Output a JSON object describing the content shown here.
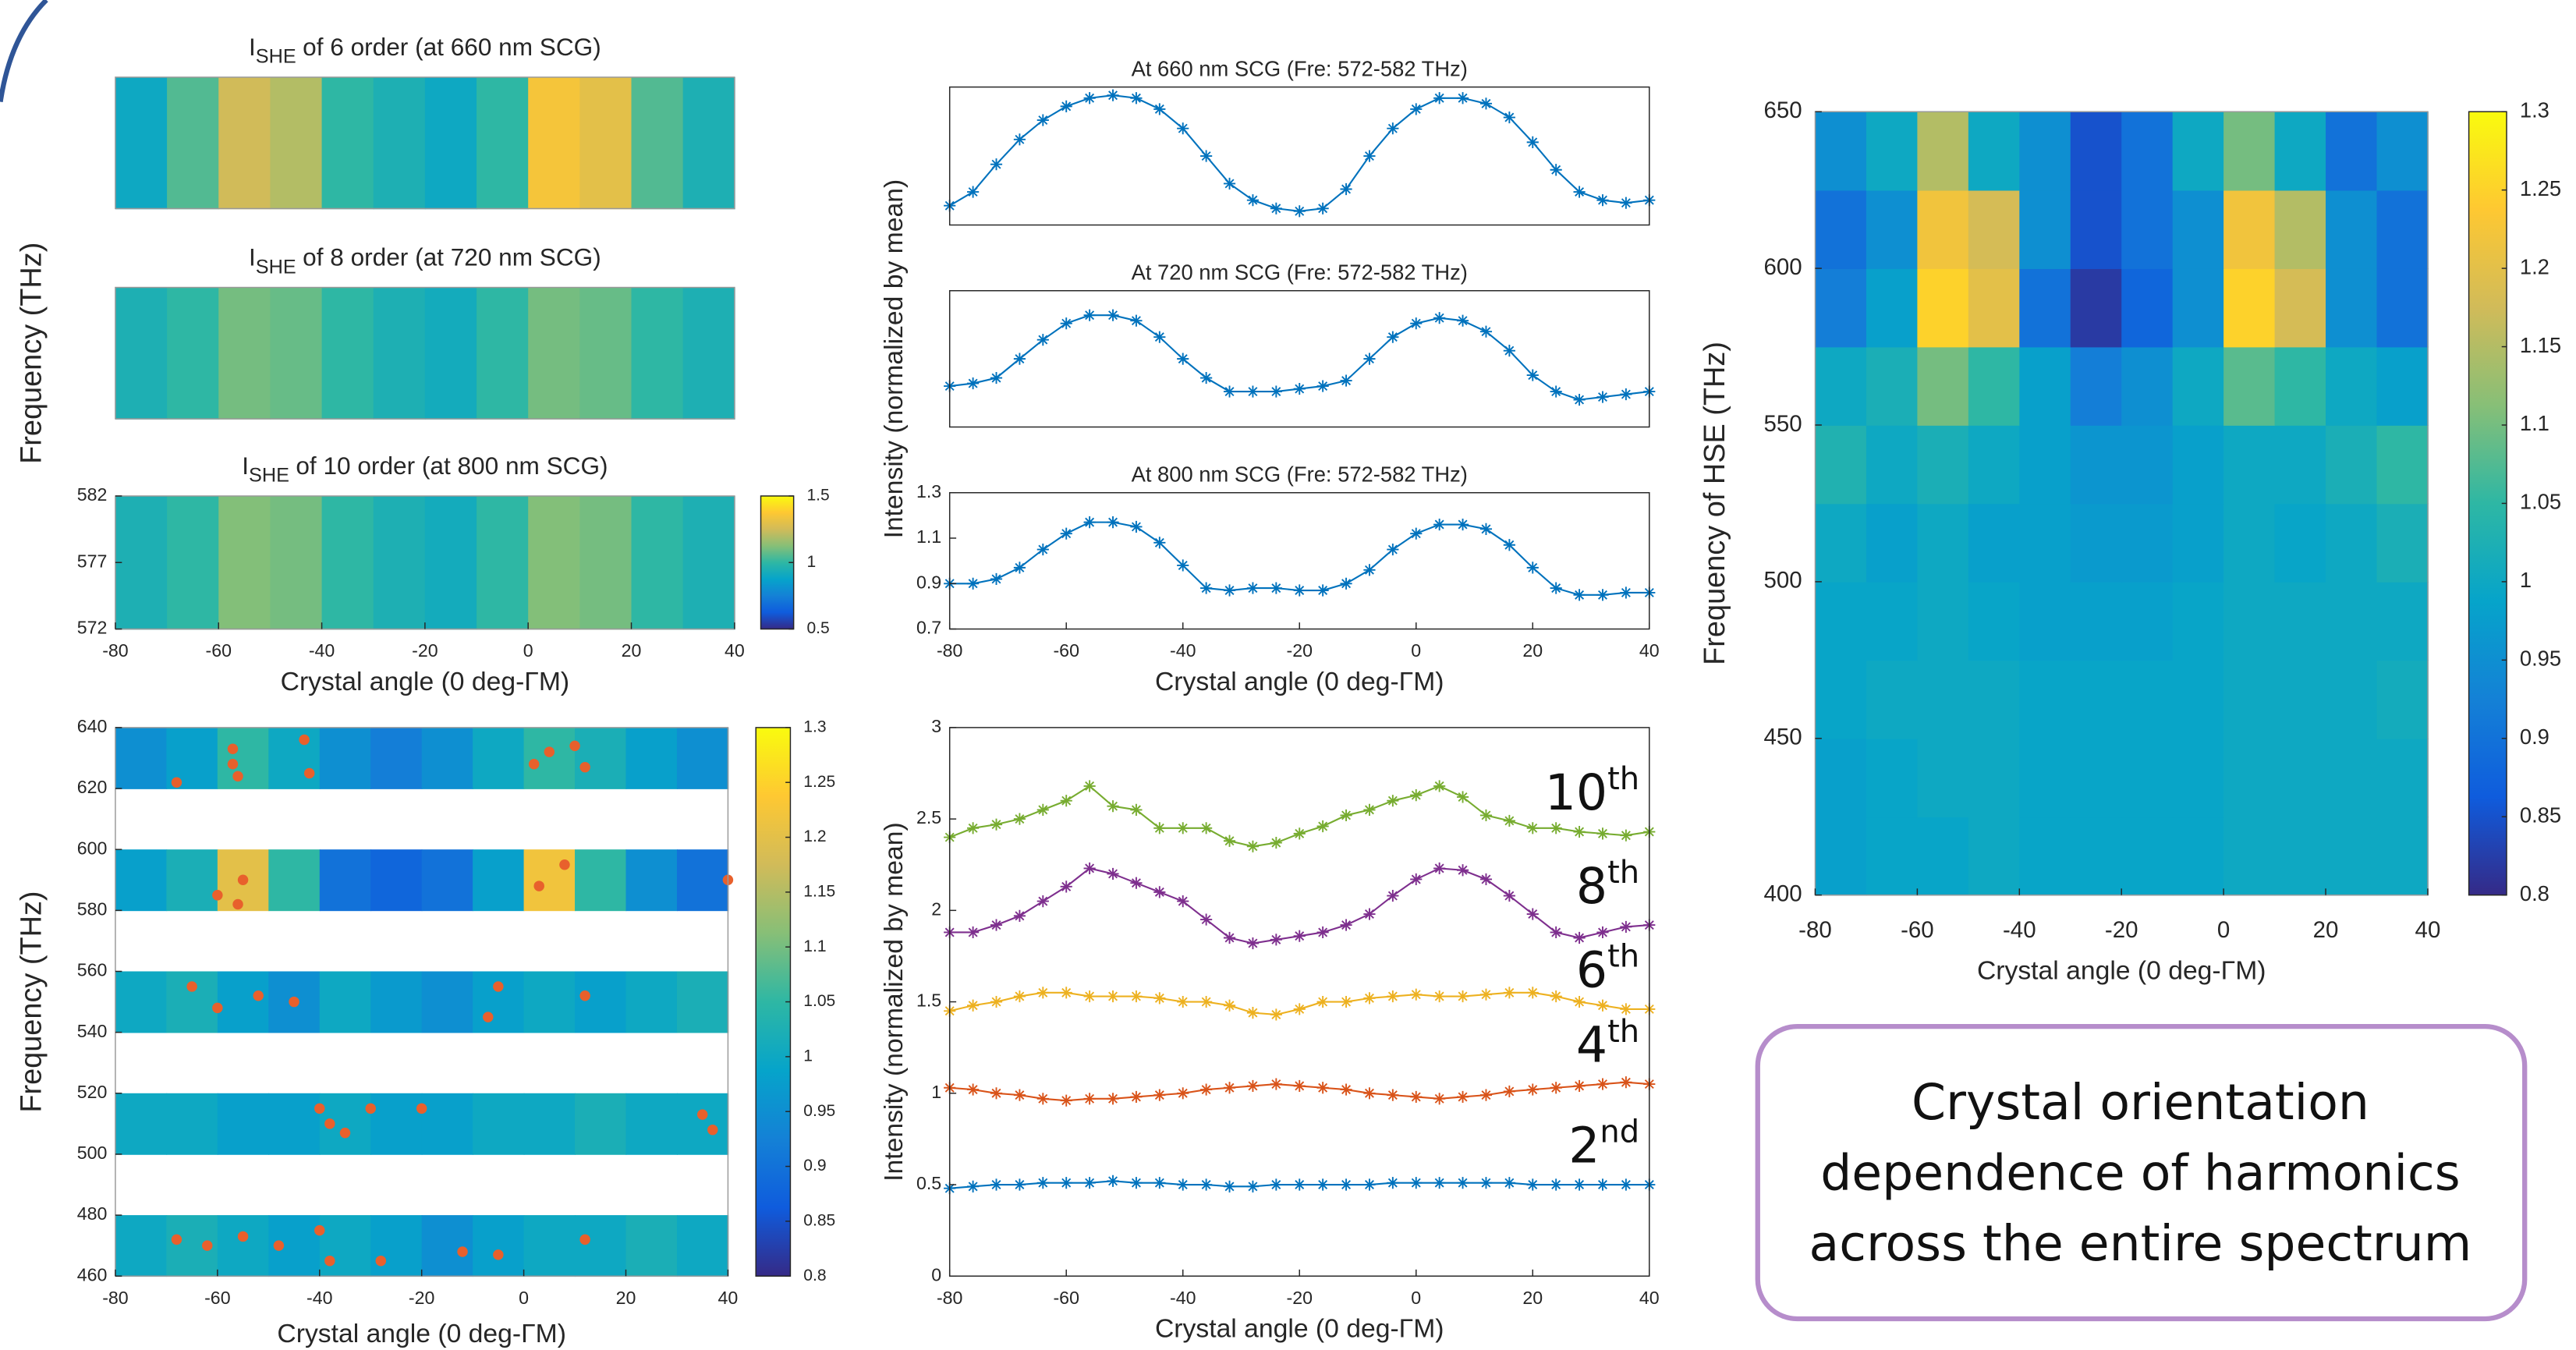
{
  "colormap": [
    "#352a87",
    "#0f5cdd",
    "#1481d6",
    "#06a4ca",
    "#2eb7a4",
    "#87bf77",
    "#d1bb59",
    "#fec832",
    "#f9fb0e"
  ],
  "chart_data": [
    {
      "type": "heatmap",
      "title": "I",
      "title_sub": "SHE",
      "title_rest": "of 6 order (at 660 nm SCG)",
      "xlim": [
        -80,
        40
      ],
      "ylim": [
        572,
        582
      ],
      "xbins": [
        -80,
        -70,
        -60,
        -50,
        -40,
        -30,
        -20,
        -10,
        0,
        10,
        20,
        30,
        40
      ],
      "ybins": [
        572,
        582
      ],
      "z": [
        [
          0.9,
          1.05,
          1.25,
          1.2,
          1.0,
          0.95,
          0.9,
          1.0,
          1.35,
          1.3,
          1.05,
          0.95
        ]
      ],
      "clim": [
        0.5,
        1.5
      ]
    },
    {
      "type": "heatmap",
      "title": "I",
      "title_sub": "SHE",
      "title_rest": "of 8 order (at 720 nm SCG)",
      "ylabel": "Frequency (THz)",
      "xlim": [
        -80,
        40
      ],
      "ylim": [
        572,
        582
      ],
      "xbins": [
        -80,
        -70,
        -60,
        -50,
        -40,
        -30,
        -20,
        -10,
        0,
        10,
        20,
        30,
        40
      ],
      "ybins": [
        572,
        582
      ],
      "z": [
        [
          0.95,
          1.0,
          1.1,
          1.08,
          1.0,
          0.95,
          0.92,
          1.0,
          1.1,
          1.08,
          1.0,
          0.95
        ]
      ],
      "clim": [
        0.5,
        1.5
      ]
    },
    {
      "type": "heatmap",
      "title": "I",
      "title_sub": "SHE",
      "title_rest": "of 10 order (at 800 nm SCG)",
      "xlabel": "Crystal angle (0 deg-ΓM)",
      "xlim": [
        -80,
        40
      ],
      "ylim": [
        572,
        582
      ],
      "xticks": [
        -80,
        -60,
        -40,
        -20,
        0,
        20,
        40
      ],
      "yticks": [
        572,
        577,
        582
      ],
      "xbins": [
        -80,
        -70,
        -60,
        -50,
        -40,
        -30,
        -20,
        -10,
        0,
        10,
        20,
        30,
        40
      ],
      "ybins": [
        572,
        582
      ],
      "z": [
        [
          0.95,
          1.0,
          1.12,
          1.1,
          1.0,
          0.95,
          0.92,
          1.0,
          1.12,
          1.1,
          1.0,
          0.95
        ]
      ],
      "clim": [
        0.5,
        1.5
      ],
      "cticks": [
        0.5,
        1,
        1.5
      ]
    },
    {
      "type": "line",
      "title": "At 660 nm SCG (Fre: 572-582 THz)",
      "xlim": [
        -80,
        40
      ],
      "ylim": [
        0.75,
        1.25
      ],
      "color": "#0072bd",
      "x": [
        -80,
        -76,
        -72,
        -68,
        -64,
        -60,
        -56,
        -52,
        -48,
        -44,
        -40,
        -36,
        -32,
        -28,
        -24,
        -20,
        -16,
        -12,
        -8,
        -4,
        0,
        4,
        8,
        12,
        16,
        20,
        24,
        28,
        32,
        36,
        40
      ],
      "values": [
        0.82,
        0.87,
        0.97,
        1.06,
        1.13,
        1.18,
        1.21,
        1.22,
        1.21,
        1.17,
        1.1,
        1.0,
        0.9,
        0.84,
        0.81,
        0.8,
        0.81,
        0.88,
        1.0,
        1.1,
        1.17,
        1.21,
        1.21,
        1.19,
        1.14,
        1.05,
        0.95,
        0.87,
        0.84,
        0.83,
        0.84
      ]
    },
    {
      "type": "line",
      "title": "At 720 nm SCG (Fre: 572-582 THz)",
      "ylabel": "Intensity (normalized by mean)",
      "xlim": [
        -80,
        40
      ],
      "ylim": [
        0.75,
        1.25
      ],
      "color": "#0072bd",
      "x": [
        -80,
        -76,
        -72,
        -68,
        -64,
        -60,
        -56,
        -52,
        -48,
        -44,
        -40,
        -36,
        -32,
        -28,
        -24,
        -20,
        -16,
        -12,
        -8,
        -4,
        0,
        4,
        8,
        12,
        16,
        20,
        24,
        28,
        32,
        36,
        40
      ],
      "values": [
        0.9,
        0.91,
        0.93,
        1.0,
        1.07,
        1.13,
        1.16,
        1.16,
        1.14,
        1.08,
        1.0,
        0.93,
        0.88,
        0.88,
        0.88,
        0.89,
        0.9,
        0.92,
        1.0,
        1.08,
        1.13,
        1.15,
        1.14,
        1.1,
        1.03,
        0.94,
        0.88,
        0.85,
        0.86,
        0.87,
        0.88
      ]
    },
    {
      "type": "line",
      "title": "At 800 nm SCG (Fre: 572-582 THz)",
      "xlabel": "Crystal angle (0 deg-ΓM)",
      "xlim": [
        -80,
        40
      ],
      "ylim": [
        0.7,
        1.3
      ],
      "xticks": [
        -80,
        -60,
        -40,
        -20,
        0,
        20,
        40
      ],
      "yticks": [
        0.7,
        0.9,
        1.1,
        1.3
      ],
      "color": "#0072bd",
      "x": [
        -80,
        -76,
        -72,
        -68,
        -64,
        -60,
        -56,
        -52,
        -48,
        -44,
        -40,
        -36,
        -32,
        -28,
        -24,
        -20,
        -16,
        -12,
        -8,
        -4,
        0,
        4,
        8,
        12,
        16,
        20,
        24,
        28,
        32,
        36,
        40
      ],
      "values": [
        0.9,
        0.9,
        0.92,
        0.97,
        1.05,
        1.12,
        1.17,
        1.17,
        1.15,
        1.08,
        0.98,
        0.88,
        0.87,
        0.88,
        0.88,
        0.87,
        0.87,
        0.9,
        0.96,
        1.05,
        1.12,
        1.16,
        1.16,
        1.14,
        1.07,
        0.97,
        0.88,
        0.85,
        0.85,
        0.86,
        0.86
      ]
    },
    {
      "type": "heatmap",
      "xlabel": "Crystal angle (0 deg-ΓM)",
      "ylabel": "Frequency (THz)",
      "xlim": [
        -80,
        40
      ],
      "ylim": [
        460,
        640
      ],
      "xticks": [
        -80,
        -60,
        -40,
        -20,
        0,
        20,
        40
      ],
      "yticks": [
        460,
        480,
        500,
        520,
        540,
        560,
        580,
        600,
        620,
        640
      ],
      "xbins": [
        -80,
        -70,
        -60,
        -50,
        -40,
        -30,
        -20,
        -10,
        0,
        10,
        20,
        30,
        40
      ],
      "ybins": [
        460,
        480,
        500,
        520,
        540,
        560,
        580,
        600,
        620,
        640
      ],
      "z": [
        [
          1.0,
          1.02,
          1.0,
          0.98,
          1.0,
          0.98,
          0.95,
          0.98,
          1.0,
          1.0,
          1.02,
          1.0
        ],
        [
          null,
          null,
          null,
          null,
          null,
          null,
          null,
          null,
          null,
          null,
          null,
          null
        ],
        [
          1.0,
          1.0,
          0.98,
          0.98,
          1.0,
          0.98,
          0.98,
          1.0,
          1.0,
          1.02,
          1.0,
          1.0
        ],
        [
          null,
          null,
          null,
          null,
          null,
          null,
          null,
          null,
          null,
          null,
          null,
          null
        ],
        [
          1.0,
          1.02,
          0.98,
          0.95,
          1.0,
          0.97,
          0.95,
          0.98,
          1.0,
          0.98,
          1.0,
          1.02
        ],
        [
          null,
          null,
          null,
          null,
          null,
          null,
          null,
          null,
          null,
          null,
          null,
          null
        ],
        [
          0.98,
          1.02,
          1.2,
          1.05,
          0.9,
          0.88,
          0.9,
          0.98,
          1.22,
          1.05,
          0.95,
          0.9
        ],
        [
          null,
          null,
          null,
          null,
          null,
          null,
          null,
          null,
          null,
          null,
          null,
          null
        ],
        [
          0.95,
          0.98,
          1.05,
          1.0,
          0.95,
          0.92,
          0.95,
          1.0,
          1.05,
          1.02,
          0.98,
          0.95
        ]
      ],
      "clim": [
        0.8,
        1.3
      ],
      "cticks": [
        0.8,
        0.85,
        0.9,
        0.95,
        1,
        1.05,
        1.1,
        1.15,
        1.2,
        1.25,
        1.3
      ],
      "points": {
        "color": "#e8602c",
        "x": [
          -57,
          -57,
          -56,
          -43,
          -42,
          -68,
          -60,
          -55,
          2,
          5,
          10,
          12,
          -56,
          3,
          8,
          40,
          -65,
          -60,
          -52,
          -45,
          -5,
          -7,
          12,
          -40,
          -35,
          -30,
          -38,
          -20,
          35,
          37,
          -68,
          -62,
          -55,
          -48,
          -40,
          -38,
          -28,
          -12,
          12,
          -5
        ],
        "y": [
          633,
          628,
          624,
          636,
          625,
          622,
          585,
          590,
          628,
          632,
          634,
          627,
          582,
          588,
          595,
          590,
          555,
          548,
          552,
          550,
          555,
          545,
          552,
          515,
          507,
          515,
          510,
          515,
          513,
          508,
          472,
          470,
          473,
          470,
          475,
          465,
          465,
          468,
          472,
          467
        ]
      }
    },
    {
      "type": "line",
      "xlabel": "Crystal angle (0 deg-ΓM)",
      "ylabel": "Intensity (normalized by mean)",
      "xlim": [
        -80,
        40
      ],
      "ylim": [
        0,
        3
      ],
      "xticks": [
        -80,
        -60,
        -40,
        -20,
        0,
        20,
        40
      ],
      "yticks": [
        0,
        0.5,
        1,
        1.5,
        2,
        2.5,
        3
      ],
      "x": [
        -80,
        -76,
        -72,
        -68,
        -64,
        -60,
        -56,
        -52,
        -48,
        -44,
        -40,
        -36,
        -32,
        -28,
        -24,
        -20,
        -16,
        -12,
        -8,
        -4,
        0,
        4,
        8,
        12,
        16,
        20,
        24,
        28,
        32,
        36,
        40
      ],
      "series": [
        {
          "label": "10",
          "label_sup": "th",
          "color": "#77ac30",
          "values": [
            2.4,
            2.45,
            2.47,
            2.5,
            2.55,
            2.6,
            2.68,
            2.57,
            2.55,
            2.45,
            2.45,
            2.45,
            2.38,
            2.35,
            2.37,
            2.42,
            2.46,
            2.52,
            2.55,
            2.6,
            2.63,
            2.68,
            2.62,
            2.52,
            2.49,
            2.45,
            2.45,
            2.43,
            2.42,
            2.41,
            2.43
          ]
        },
        {
          "label": "8",
          "label_sup": "th",
          "color": "#7e2f8e",
          "values": [
            1.88,
            1.88,
            1.92,
            1.97,
            2.05,
            2.13,
            2.23,
            2.2,
            2.15,
            2.1,
            2.05,
            1.95,
            1.85,
            1.82,
            1.84,
            1.86,
            1.88,
            1.92,
            1.98,
            2.08,
            2.17,
            2.23,
            2.22,
            2.17,
            2.08,
            1.98,
            1.88,
            1.85,
            1.88,
            1.91,
            1.92
          ]
        },
        {
          "label": "6",
          "label_sup": "th",
          "color": "#edb120",
          "values": [
            1.45,
            1.48,
            1.5,
            1.53,
            1.55,
            1.55,
            1.53,
            1.53,
            1.53,
            1.52,
            1.5,
            1.5,
            1.48,
            1.44,
            1.43,
            1.46,
            1.5,
            1.5,
            1.52,
            1.53,
            1.54,
            1.53,
            1.53,
            1.54,
            1.55,
            1.55,
            1.53,
            1.5,
            1.48,
            1.46,
            1.46
          ]
        },
        {
          "label": "4",
          "label_sup": "th",
          "color": "#d95319",
          "values": [
            1.03,
            1.02,
            1.0,
            0.99,
            0.97,
            0.96,
            0.97,
            0.97,
            0.98,
            0.99,
            1.0,
            1.02,
            1.03,
            1.04,
            1.05,
            1.04,
            1.03,
            1.02,
            1.0,
            0.99,
            0.98,
            0.97,
            0.98,
            0.99,
            1.01,
            1.02,
            1.03,
            1.04,
            1.05,
            1.06,
            1.05
          ]
        },
        {
          "label": "2",
          "label_sup": "nd",
          "color": "#0072bd",
          "values": [
            0.48,
            0.49,
            0.5,
            0.5,
            0.51,
            0.51,
            0.51,
            0.52,
            0.51,
            0.51,
            0.5,
            0.5,
            0.49,
            0.49,
            0.5,
            0.5,
            0.5,
            0.5,
            0.5,
            0.51,
            0.51,
            0.51,
            0.51,
            0.51,
            0.51,
            0.5,
            0.5,
            0.5,
            0.5,
            0.5,
            0.5
          ]
        }
      ]
    },
    {
      "type": "heatmap",
      "xlabel": "Crystal angle (0 deg-ΓM)",
      "ylabel": "Frequency of HSE (THz)",
      "xlim": [
        -80,
        40
      ],
      "ylim": [
        400,
        650
      ],
      "xticks": [
        -80,
        -60,
        -40,
        -20,
        0,
        20,
        40
      ],
      "yticks": [
        400,
        450,
        500,
        550,
        600,
        650
      ],
      "xbins": [
        -80,
        -70,
        -60,
        -50,
        -40,
        -30,
        -20,
        -10,
        0,
        10,
        20,
        30,
        40
      ],
      "ybins": [
        400,
        425,
        450,
        475,
        500,
        525,
        550,
        575,
        600,
        625,
        650
      ],
      "z": [
        [
          0.98,
          0.99,
          0.99,
          1.0,
          0.99,
          0.99,
          0.99,
          0.99,
          1.0,
          1.0,
          1.0,
          1.0
        ],
        [
          0.98,
          0.99,
          1.0,
          1.0,
          0.99,
          0.99,
          0.99,
          0.99,
          1.0,
          1.0,
          1.0,
          1.0
        ],
        [
          0.99,
          1.0,
          1.0,
          1.0,
          0.99,
          0.99,
          0.99,
          0.99,
          1.0,
          1.0,
          1.0,
          1.01
        ],
        [
          0.99,
          0.99,
          1.0,
          0.99,
          0.98,
          0.98,
          0.98,
          0.99,
          1.0,
          1.0,
          1.0,
          1.0
        ],
        [
          1.0,
          0.98,
          1.0,
          0.98,
          0.98,
          0.97,
          0.97,
          0.98,
          1.0,
          0.99,
          1.0,
          1.02
        ],
        [
          1.03,
          1.0,
          1.02,
          1.0,
          0.98,
          0.96,
          0.96,
          0.98,
          1.0,
          1.0,
          1.02,
          1.05
        ],
        [
          1.0,
          1.02,
          1.1,
          1.05,
          0.98,
          0.92,
          0.95,
          1.0,
          1.08,
          1.05,
          1.0,
          0.98
        ],
        [
          0.92,
          0.98,
          1.25,
          1.2,
          0.9,
          0.82,
          0.88,
          0.95,
          1.25,
          1.18,
          0.95,
          0.9
        ],
        [
          0.9,
          0.95,
          1.22,
          1.18,
          0.95,
          0.85,
          0.9,
          0.95,
          1.22,
          1.15,
          0.95,
          0.9
        ],
        [
          0.95,
          1.0,
          1.15,
          1.0,
          0.95,
          0.85,
          0.9,
          1.0,
          1.1,
          1.0,
          0.9,
          0.95
        ]
      ],
      "clim": [
        0.8,
        1.3
      ],
      "cticks": [
        0.8,
        0.85,
        0.9,
        0.95,
        1,
        1.05,
        1.1,
        1.15,
        1.2,
        1.25,
        1.3
      ]
    }
  ],
  "text_box": {
    "lines": [
      "Crystal orientation",
      "dependence of harmonics",
      "across the entire spectrum"
    ]
  }
}
